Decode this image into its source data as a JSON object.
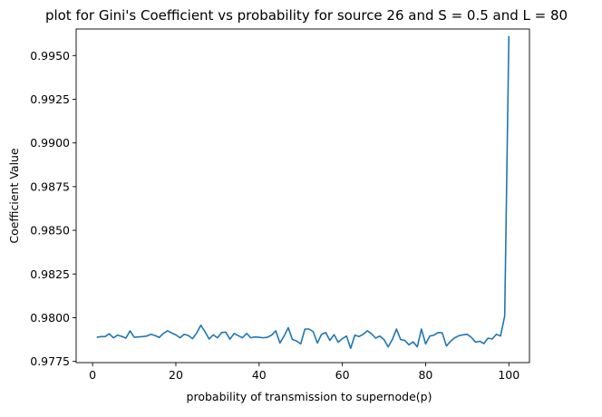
{
  "chart_data": {
    "type": "line",
    "title": "plot for Gini's Coefficient vs probability for source 26 and S = 0.5 and L = 80",
    "xlabel": "probability of transmission to supernode(p)",
    "ylabel": "Coefficient Value",
    "xlim": [
      -3.95,
      104.95
    ],
    "ylim": [
      0.97743,
      0.99652
    ],
    "xticks": [
      0,
      20,
      40,
      60,
      80,
      100
    ],
    "xtick_labels": [
      "0",
      "20",
      "40",
      "60",
      "80",
      "100"
    ],
    "yticks": [
      0.9775,
      0.98,
      0.9825,
      0.985,
      0.9875,
      0.99,
      0.9925,
      0.995
    ],
    "ytick_labels": [
      "0.9775",
      "0.9800",
      "0.9825",
      "0.9850",
      "0.9875",
      "0.9900",
      "0.9925",
      "0.9950"
    ],
    "grid": false,
    "legend": "none",
    "line_color": "#1f77b4",
    "series": [
      {
        "x": [
          1,
          2,
          3,
          4,
          5,
          6,
          7,
          8,
          9,
          10,
          11,
          12,
          13,
          14,
          15,
          16,
          17,
          18,
          19,
          20,
          21,
          22,
          23,
          24,
          25,
          26,
          27,
          28,
          29,
          30,
          31,
          32,
          33,
          34,
          35,
          36,
          37,
          38,
          39,
          40,
          41,
          42,
          43,
          44,
          45,
          46,
          47,
          48,
          49,
          50,
          51,
          52,
          53,
          54,
          55,
          56,
          57,
          58,
          59,
          60,
          61,
          62,
          63,
          64,
          65,
          66,
          67,
          68,
          69,
          70,
          71,
          72,
          73,
          74,
          75,
          76,
          77,
          78,
          79,
          80,
          81,
          82,
          83,
          84,
          85,
          86,
          87,
          88,
          89,
          90,
          91,
          92,
          93,
          94,
          95,
          96,
          97,
          98,
          99,
          100
        ],
        "values": [
          0.97888,
          0.97892,
          0.97892,
          0.97908,
          0.97885,
          0.979,
          0.97893,
          0.97883,
          0.97925,
          0.97888,
          0.9789,
          0.97892,
          0.97895,
          0.97905,
          0.97898,
          0.97887,
          0.9791,
          0.97925,
          0.97913,
          0.97902,
          0.97885,
          0.97905,
          0.97898,
          0.9788,
          0.97912,
          0.97957,
          0.9792,
          0.97878,
          0.97902,
          0.97885,
          0.97915,
          0.97917,
          0.97877,
          0.9791,
          0.97897,
          0.97885,
          0.9791,
          0.97885,
          0.9789,
          0.97888,
          0.97885,
          0.97888,
          0.979,
          0.97925,
          0.97855,
          0.97895,
          0.97943,
          0.97875,
          0.97867,
          0.9785,
          0.97935,
          0.97935,
          0.9792,
          0.97855,
          0.97905,
          0.97915,
          0.9787,
          0.97903,
          0.9786,
          0.9788,
          0.97895,
          0.97825,
          0.979,
          0.97892,
          0.97905,
          0.97925,
          0.97908,
          0.97883,
          0.97895,
          0.97875,
          0.97833,
          0.97875,
          0.97935,
          0.97875,
          0.9787,
          0.97845,
          0.97862,
          0.97833,
          0.97935,
          0.9785,
          0.97895,
          0.979,
          0.97915,
          0.97913,
          0.97838,
          0.97865,
          0.97885,
          0.97897,
          0.97902,
          0.97905,
          0.97887,
          0.9786,
          0.97865,
          0.97852,
          0.97883,
          0.97878,
          0.97905,
          0.97895,
          0.9801,
          0.99612
        ]
      }
    ]
  }
}
